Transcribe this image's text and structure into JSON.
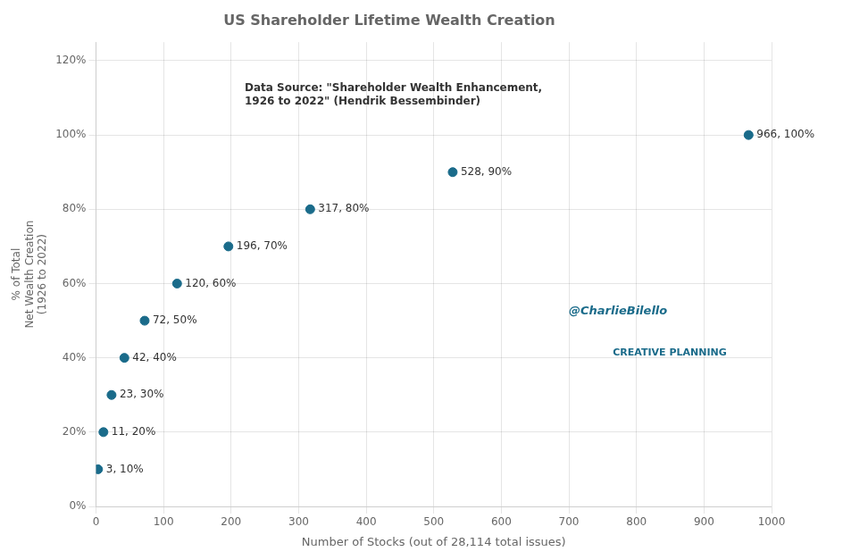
{
  "chart_data": {
    "type": "scatter",
    "title": "US Shareholder Lifetime Wealth Creation",
    "x_label": "Number of Stocks (out of 28,114 total issues)",
    "y_label": "% of Total\nNet Wealth Creation\n(1926 to 2022)",
    "x": [
      3,
      11,
      23,
      42,
      72,
      120,
      196,
      317,
      528,
      966
    ],
    "values": [
      0.1,
      0.2,
      0.3,
      0.4,
      0.5,
      0.6,
      0.7,
      0.8,
      0.9,
      1.0
    ],
    "value_labels": [
      "3, 10%",
      "11, 20%",
      "23, 30%",
      "42, 40%",
      "72, 50%",
      "120, 60%",
      "196, 70%",
      "317, 80%",
      "528, 90%",
      "966, 100%"
    ],
    "data_labels": true,
    "color": "#1a6b8a",
    "xlim": [
      0,
      1000
    ],
    "xticks": [
      0,
      100,
      200,
      300,
      400,
      500,
      600,
      700,
      800,
      900,
      1000
    ],
    "ylim": [
      0,
      1.25
    ],
    "yticks": [
      {
        "value": 0.0,
        "label": "0%"
      },
      {
        "value": 0.2,
        "label": "20%"
      },
      {
        "value": 0.4,
        "label": "40%"
      },
      {
        "value": 0.6,
        "label": "60%"
      },
      {
        "value": 0.8,
        "label": "80%"
      },
      {
        "value": 1.0,
        "label": "100%"
      },
      {
        "value": 1.2,
        "label": "120%"
      }
    ],
    "grid": true,
    "annotations": [
      {
        "text": "Data Source: \"Shareholder Wealth Enhancement,\n1926 to 2022\" (Hendrik Bessembinder)",
        "x": 220,
        "y": 1.14
      },
      {
        "text": "@CharlieBilello"
      },
      {
        "text": "CREATIVE PLANNING"
      }
    ]
  }
}
